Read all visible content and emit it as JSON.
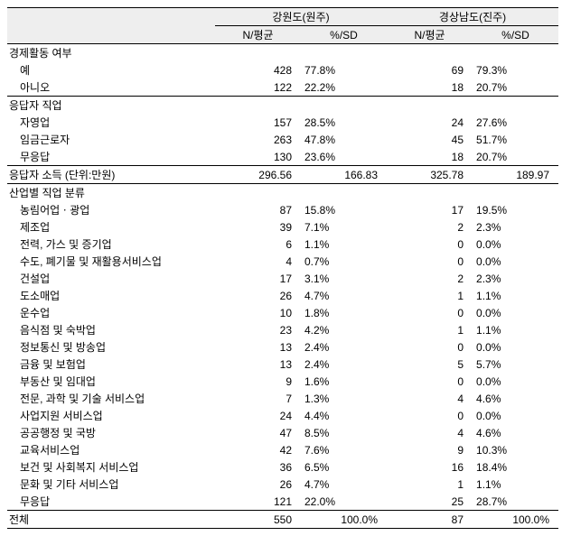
{
  "header": {
    "region1": "강원도(원주)",
    "region2": "경상남도(진주)",
    "col_n": "N/평균",
    "col_p": "%/SD"
  },
  "sections": [
    {
      "title": "경제활동 여부",
      "rows": [
        {
          "label": "예",
          "n1": "428",
          "p1": "77.8%",
          "n2": "69",
          "p2": "79.3%"
        },
        {
          "label": "아니오",
          "n1": "122",
          "p1": "22.2%",
          "n2": "18",
          "p2": "20.7%"
        }
      ],
      "bottom_border": true
    },
    {
      "title": "응답자 직업",
      "rows": [
        {
          "label": "자영업",
          "n1": "157",
          "p1": "28.5%",
          "n2": "24",
          "p2": "27.6%"
        },
        {
          "label": "임금근로자",
          "n1": "263",
          "p1": "47.8%",
          "n2": "45",
          "p2": "51.7%"
        },
        {
          "label": "무응답",
          "n1": "130",
          "p1": "23.6%",
          "n2": "18",
          "p2": "20.7%"
        }
      ],
      "bottom_border": true
    }
  ],
  "income": {
    "label": "응답자 소득 (단위:만원)",
    "n1": "296.56",
    "p1": "166.83",
    "n2": "325.78",
    "p2": "189.97"
  },
  "industry": {
    "title": "산업별 직업 분류",
    "rows": [
      {
        "label": "농림어업ㆍ광업",
        "n1": "87",
        "p1": "15.8%",
        "n2": "17",
        "p2": "19.5%"
      },
      {
        "label": "제조업",
        "n1": "39",
        "p1": "7.1%",
        "n2": "2",
        "p2": "2.3%"
      },
      {
        "label": "전력, 가스 및 증기업",
        "n1": "6",
        "p1": "1.1%",
        "n2": "0",
        "p2": "0.0%"
      },
      {
        "label": "수도, 폐기물 및 재활용서비스업",
        "n1": "4",
        "p1": "0.7%",
        "n2": "0",
        "p2": "0.0%"
      },
      {
        "label": "건설업",
        "n1": "17",
        "p1": "3.1%",
        "n2": "2",
        "p2": "2.3%"
      },
      {
        "label": "도소매업",
        "n1": "26",
        "p1": "4.7%",
        "n2": "1",
        "p2": "1.1%"
      },
      {
        "label": "운수업",
        "n1": "10",
        "p1": "1.8%",
        "n2": "0",
        "p2": "0.0%"
      },
      {
        "label": "음식점 및 숙박업",
        "n1": "23",
        "p1": "4.2%",
        "n2": "1",
        "p2": "1.1%"
      },
      {
        "label": "정보통신 및 방송업",
        "n1": "13",
        "p1": "2.4%",
        "n2": "0",
        "p2": "0.0%"
      },
      {
        "label": "금융 및 보험업",
        "n1": "13",
        "p1": "2.4%",
        "n2": "5",
        "p2": "5.7%"
      },
      {
        "label": "부동산 및 임대업",
        "n1": "9",
        "p1": "1.6%",
        "n2": "0",
        "p2": "0.0%"
      },
      {
        "label": "전문, 과학 및 기술 서비스업",
        "n1": "7",
        "p1": "1.3%",
        "n2": "4",
        "p2": "4.6%"
      },
      {
        "label": "사업지원 서비스업",
        "n1": "24",
        "p1": "4.4%",
        "n2": "0",
        "p2": "0.0%"
      },
      {
        "label": "공공행정 및 국방",
        "n1": "47",
        "p1": "8.5%",
        "n2": "4",
        "p2": "4.6%"
      },
      {
        "label": "교육서비스업",
        "n1": "42",
        "p1": "7.6%",
        "n2": "9",
        "p2": "10.3%"
      },
      {
        "label": "보건 및 사회복지 서비스업",
        "n1": "36",
        "p1": "6.5%",
        "n2": "16",
        "p2": "18.4%"
      },
      {
        "label": "문화 및 기타 서비스업",
        "n1": "26",
        "p1": "4.7%",
        "n2": "1",
        "p2": "1.1%"
      },
      {
        "label": "무응답",
        "n1": "121",
        "p1": "22.0%",
        "n2": "25",
        "p2": "28.7%"
      }
    ]
  },
  "total": {
    "label": "전체",
    "n1": "550",
    "p1": "100.0%",
    "n2": "87",
    "p2": "100.0%"
  }
}
